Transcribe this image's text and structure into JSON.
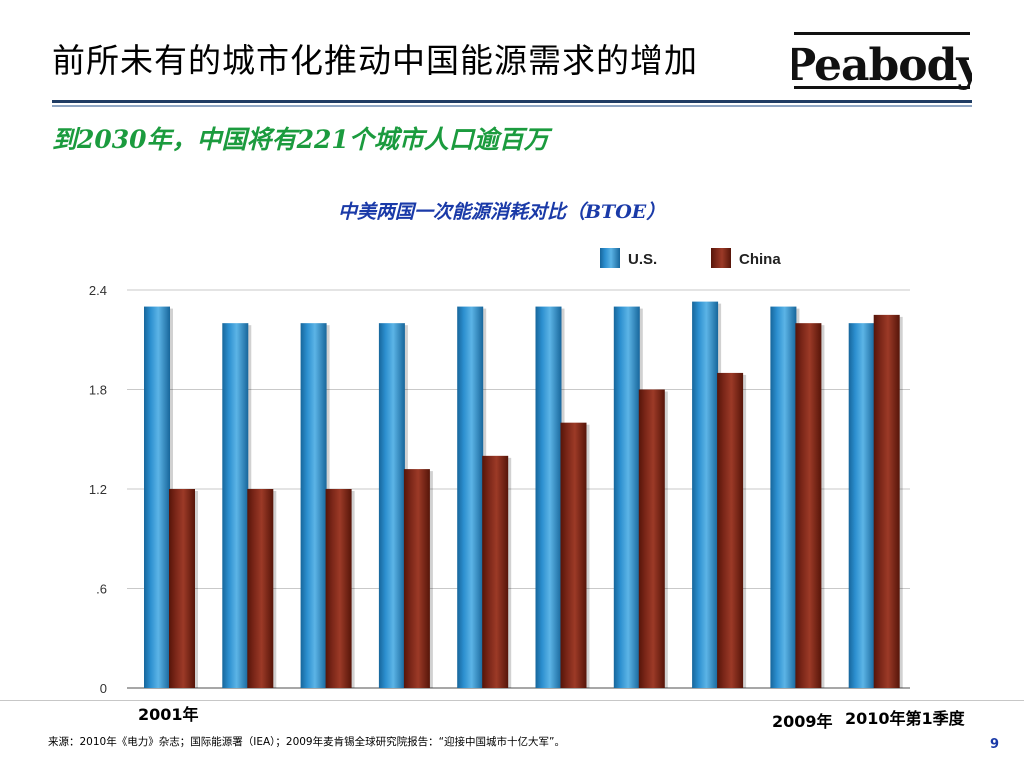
{
  "slide": {
    "title": "前所未有的城市化推动中国能源需求的增加",
    "subtitle": "到2030年，中国将有221个城市人口逾百万",
    "logo_text": "Peabody",
    "page_number": "9",
    "source": "来源：2010年《电力》杂志；国际能源署（IEA）；2009年麦肯锡全球研究院报告：“迎接中国城市十亿大军”。"
  },
  "chart_data": {
    "type": "bar",
    "title": "中美两国一次能源消耗对比（BTOE）",
    "categories": [
      "2001年",
      "",
      "",
      "",
      "",
      "",
      "",
      "",
      "2009年",
      "2010年第1季度"
    ],
    "series": [
      {
        "name": "U.S.",
        "color": "#2c8fcf",
        "values": [
          2.3,
          2.2,
          2.2,
          2.2,
          2.3,
          2.3,
          2.3,
          2.33,
          2.3,
          2.2
        ]
      },
      {
        "name": "China",
        "color": "#7a2618",
        "values": [
          1.2,
          1.2,
          1.2,
          1.32,
          1.4,
          1.6,
          1.8,
          1.9,
          2.2,
          2.25
        ]
      }
    ],
    "yticks": [
      0,
      0.6,
      1.2,
      1.8,
      2.4
    ],
    "ytick_labels": [
      "0",
      ".6",
      "1.2",
      "1.8",
      "2.4"
    ],
    "ylim": [
      0,
      2.4
    ],
    "grid": true,
    "legend": "top-right",
    "xlabel": "",
    "ylabel": ""
  }
}
